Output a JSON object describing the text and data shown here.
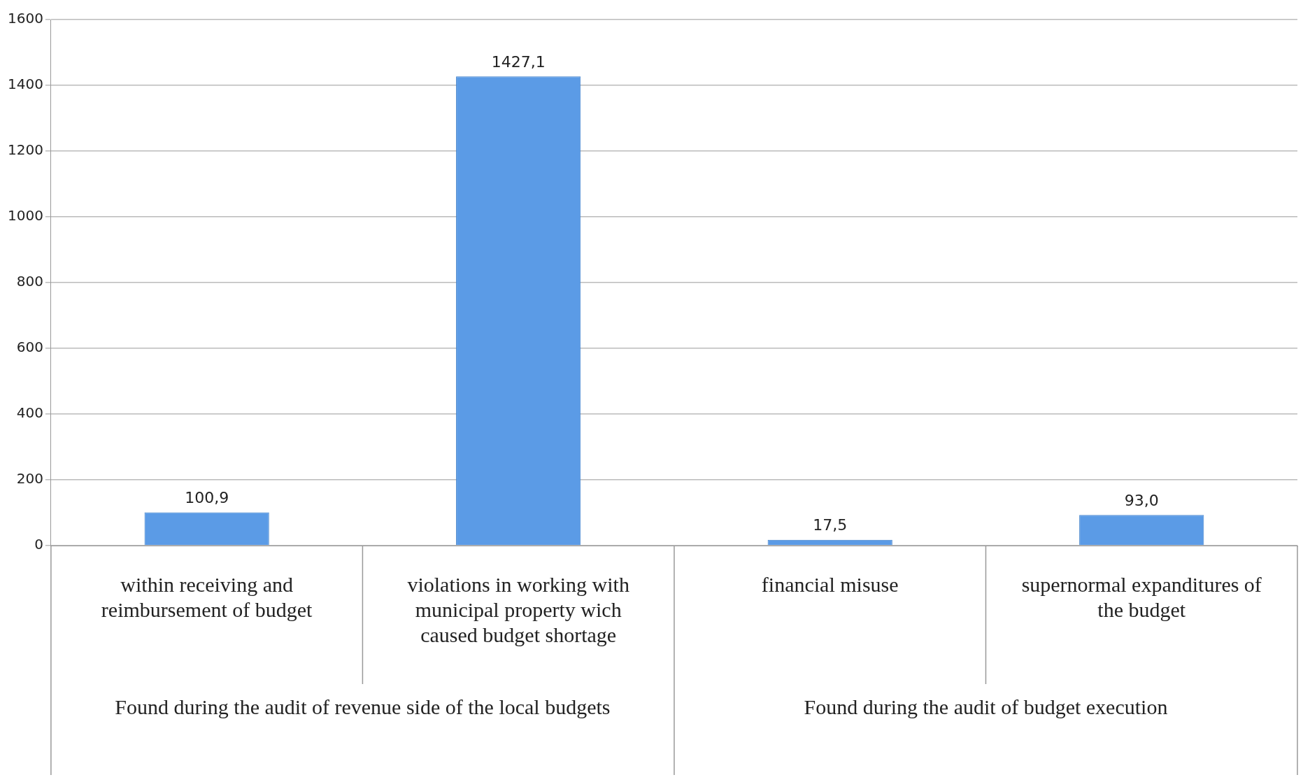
{
  "chart_data": {
    "type": "bar",
    "categories": [
      "within receiving and reimbursement of budget",
      "violations in working with municipal property wich caused budget shortage",
      "financial misuse",
      "supernormal expanditures of the budget"
    ],
    "values": [
      100.9,
      1427.1,
      17.5,
      93.0
    ],
    "value_labels": [
      "100,9",
      "1427,1",
      "17,5",
      "93,0"
    ],
    "color": "#5b9be6",
    "ylim": [
      0,
      1600
    ],
    "yticks": [
      0,
      200,
      400,
      600,
      800,
      1000,
      1200,
      1400,
      1600
    ],
    "grid": "y",
    "legend": false,
    "annotations": [
      "Found during the audit of revenue side of the local budgets",
      "Found during the audit of budget execution"
    ]
  }
}
